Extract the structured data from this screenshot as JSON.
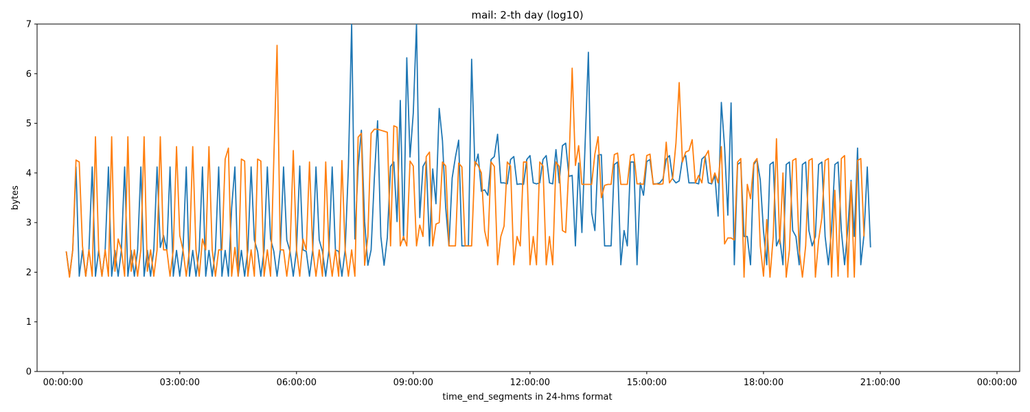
{
  "chart_data": {
    "type": "line",
    "title": "mail: 2-th day (log10)",
    "xlabel": "time_end_segments in 24-hms format",
    "ylabel": "bytes",
    "xlim": [
      "-00:40:00",
      "24:35:00"
    ],
    "ylim": [
      0,
      7
    ],
    "x_tick_labels": [
      "00:00:00",
      "03:00:00",
      "06:00:00",
      "09:00:00",
      "12:00:00",
      "15:00:00",
      "18:00:00",
      "21:00:00",
      "00:00:00"
    ],
    "x_tick_hours": [
      0,
      3,
      6,
      9,
      12,
      15,
      18,
      21,
      24
    ],
    "y_ticks": [
      0,
      1,
      2,
      3,
      4,
      5,
      6,
      7
    ],
    "x_interval_minutes": 5,
    "x_start": "00:05:00",
    "grid": false,
    "legend": "none",
    "series": [
      {
        "color": "#1f77b4",
        "values": [
          2.42,
          1.92,
          2.45,
          4.12,
          1.92,
          2.44,
          1.92,
          2.45,
          4.12,
          1.92,
          2.44,
          1.92,
          2.45,
          4.12,
          1.92,
          2.44,
          1.92,
          2.45,
          4.12,
          1.92,
          2.44,
          1.92,
          2.45,
          4.12,
          1.92,
          2.44,
          1.92,
          2.45,
          4.12,
          2.5,
          2.74,
          2.45,
          4.12,
          1.92,
          2.44,
          1.92,
          2.45,
          4.12,
          1.92,
          2.44,
          1.92,
          2.45,
          4.12,
          1.92,
          2.44,
          1.92,
          2.45,
          4.12,
          1.92,
          2.44,
          1.92,
          3.3,
          4.12,
          1.92,
          2.44,
          1.92,
          2.45,
          4.12,
          2.65,
          2.42,
          1.92,
          2.45,
          4.12,
          2.67,
          2.42,
          1.92,
          2.45,
          4.12,
          2.65,
          2.42,
          1.92,
          2.45,
          4.14,
          2.45,
          2.42,
          1.92,
          2.45,
          4.12,
          2.65,
          2.42,
          1.92,
          2.45,
          4.12,
          2.45,
          2.42,
          1.92,
          2.45,
          4.12,
          7.0,
          2.67,
          4.12,
          4.86,
          3.02,
          2.14,
          2.45,
          3.9,
          5.05,
          2.72,
          2.14,
          2.7,
          4.13,
          4.22,
          3.02,
          5.46,
          2.65,
          6.32,
          4.32,
          5.2,
          7.0,
          3.1,
          4.13,
          4.25,
          2.53,
          4.08,
          3.38,
          5.3,
          4.65,
          3.3,
          2.53,
          3.9,
          4.32,
          4.66,
          2.53,
          2.53,
          2.53,
          6.29,
          4.13,
          4.38,
          3.63,
          3.66,
          3.55,
          4.27,
          4.33,
          4.78,
          3.8,
          3.8,
          3.78,
          4.27,
          4.33,
          3.77,
          3.78,
          3.77,
          4.27,
          4.35,
          3.8,
          3.78,
          3.8,
          4.27,
          4.35,
          3.8,
          3.78,
          4.47,
          3.8,
          4.55,
          4.6,
          3.93,
          3.95,
          2.53,
          4.2,
          2.8,
          4.6,
          6.43,
          3.2,
          2.84,
          4.36,
          4.37,
          2.53,
          2.53,
          2.53,
          4.17,
          4.22,
          2.15,
          2.84,
          2.53,
          4.22,
          4.22,
          2.15,
          3.8,
          3.55,
          4.23,
          4.27,
          3.78,
          3.78,
          3.8,
          3.88,
          4.28,
          4.35,
          3.88,
          3.8,
          3.84,
          4.28,
          4.35,
          3.8,
          3.8,
          3.8,
          3.78,
          4.28,
          4.34,
          3.8,
          3.78,
          3.95,
          3.13,
          5.42,
          4.52,
          3.15,
          5.41,
          2.15,
          4.17,
          4.22,
          2.72,
          2.72,
          2.15,
          4.17,
          4.27,
          3.86,
          2.83,
          2.15,
          4.17,
          4.22,
          2.53,
          2.69,
          2.15,
          4.17,
          4.22,
          2.84,
          2.72,
          2.15,
          4.17,
          4.22,
          2.84,
          2.53,
          2.72,
          4.17,
          4.22,
          2.72,
          2.15,
          2.87,
          4.17,
          4.22,
          2.84,
          2.15,
          2.87,
          3.85,
          2.72,
          4.5,
          2.15,
          2.76,
          4.12,
          2.5
        ]
      },
      {
        "color": "#ff7f0e",
        "values": [
          2.42,
          1.9,
          2.45,
          4.26,
          4.22,
          2.53,
          1.92,
          2.45,
          1.92,
          4.73,
          2.45,
          1.92,
          2.45,
          1.92,
          4.73,
          2.02,
          2.67,
          2.45,
          1.92,
          4.73,
          2.02,
          2.45,
          1.92,
          2.45,
          4.73,
          2.02,
          2.45,
          1.92,
          2.45,
          4.73,
          2.45,
          2.45,
          1.92,
          2.45,
          4.53,
          2.74,
          2.45,
          1.92,
          2.45,
          4.53,
          2.45,
          1.92,
          2.67,
          2.45,
          4.53,
          2.45,
          1.92,
          2.45,
          2.45,
          4.28,
          4.5,
          1.92,
          2.5,
          1.92,
          4.28,
          4.24,
          1.92,
          2.45,
          1.92,
          4.28,
          4.24,
          1.92,
          2.45,
          1.92,
          4.28,
          6.57,
          2.45,
          2.45,
          1.92,
          2.45,
          4.45,
          2.45,
          1.92,
          2.67,
          2.45,
          4.22,
          2.45,
          1.92,
          2.45,
          1.92,
          4.22,
          2.45,
          1.92,
          2.45,
          1.92,
          4.25,
          2.45,
          1.92,
          2.45,
          1.92,
          4.72,
          4.8,
          2.14,
          2.72,
          4.8,
          4.88,
          4.88,
          4.86,
          4.84,
          4.82,
          2.53,
          4.95,
          4.92,
          2.53,
          2.72,
          2.53,
          4.24,
          4.14,
          2.53,
          2.95,
          2.72,
          4.33,
          4.42,
          2.53,
          2.97,
          3.0,
          4.22,
          4.14,
          2.53,
          2.53,
          2.53,
          4.2,
          4.12,
          2.53,
          2.53,
          2.53,
          4.23,
          4.15,
          4.0,
          2.84,
          2.53,
          4.22,
          4.13,
          2.15,
          2.72,
          2.93,
          4.22,
          4.14,
          2.15,
          2.72,
          2.53,
          4.22,
          4.22,
          2.15,
          2.72,
          2.15,
          4.22,
          4.14,
          2.15,
          2.72,
          2.15,
          4.22,
          4.13,
          2.84,
          2.8,
          4.15,
          6.11,
          4.15,
          4.55,
          3.77,
          3.77,
          3.77,
          3.77,
          4.38,
          4.73,
          3.5,
          3.75,
          3.77,
          3.77,
          4.37,
          4.4,
          3.77,
          3.77,
          3.77,
          4.35,
          4.38,
          3.78,
          3.78,
          3.77,
          4.35,
          4.38,
          3.77,
          3.78,
          3.77,
          3.78,
          4.62,
          3.8,
          3.9,
          4.6,
          5.82,
          4.22,
          4.42,
          4.45,
          4.67,
          3.8,
          3.95,
          3.8,
          4.33,
          4.45,
          3.8,
          4.0,
          3.8,
          4.53,
          2.57,
          2.69,
          2.69,
          2.65,
          4.22,
          4.29,
          1.9,
          3.77,
          3.48,
          4.2,
          4.29,
          2.53,
          1.92,
          3.06,
          1.9,
          2.72,
          4.69,
          2.57,
          4.0,
          1.9,
          2.45,
          4.25,
          4.29,
          2.45,
          1.9,
          2.53,
          4.25,
          4.29,
          1.9,
          2.65,
          3.1,
          4.25,
          4.29,
          1.9,
          3.65,
          1.92,
          4.29,
          4.35,
          1.9,
          3.82,
          1.9,
          4.25,
          4.29,
          2.72
        ]
      }
    ]
  }
}
